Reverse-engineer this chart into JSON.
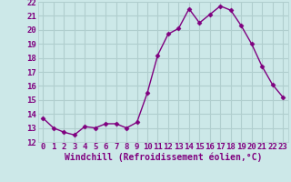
{
  "x": [
    0,
    1,
    2,
    3,
    4,
    5,
    6,
    7,
    8,
    9,
    10,
    11,
    12,
    13,
    14,
    15,
    16,
    17,
    18,
    19,
    20,
    21,
    22,
    23
  ],
  "y": [
    13.7,
    13.0,
    12.7,
    12.5,
    13.1,
    13.0,
    13.3,
    13.3,
    13.0,
    13.4,
    15.5,
    18.2,
    19.7,
    20.1,
    21.5,
    20.5,
    21.1,
    21.7,
    21.4,
    20.3,
    19.0,
    17.4,
    16.1,
    15.2
  ],
  "xlabel": "Windchill (Refroidissement éolien,°C)",
  "ylim": [
    12,
    22
  ],
  "xlim_left": -0.5,
  "xlim_right": 23.5,
  "yticks": [
    12,
    13,
    14,
    15,
    16,
    17,
    18,
    19,
    20,
    21,
    22
  ],
  "xticks": [
    0,
    1,
    2,
    3,
    4,
    5,
    6,
    7,
    8,
    9,
    10,
    11,
    12,
    13,
    14,
    15,
    16,
    17,
    18,
    19,
    20,
    21,
    22,
    23
  ],
  "line_color": "#7f007f",
  "marker_color": "#7f007f",
  "bg_color": "#cce8e8",
  "grid_color": "#b0cece",
  "tick_label_color": "#7f007f",
  "xlabel_color": "#7f007f",
  "xlabel_fontsize": 7.0,
  "tick_fontsize": 6.5,
  "marker": "D",
  "marker_size": 2.5,
  "line_width": 1.0
}
